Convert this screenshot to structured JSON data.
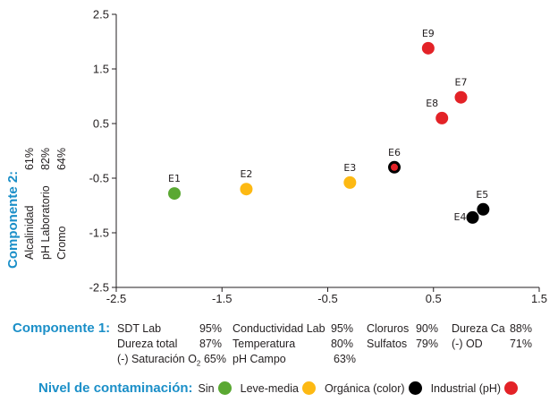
{
  "chart_data": {
    "type": "scatter",
    "title": "",
    "xlabel": "Componente 1",
    "ylabel": "Componente 2",
    "xlim": [
      -2.5,
      1.5
    ],
    "ylim": [
      -2.5,
      2.5
    ],
    "xticks": [
      -2.5,
      -1.5,
      -0.5,
      0.5,
      1.5
    ],
    "yticks": [
      2.5,
      1.5,
      0.5,
      -0.5,
      -1.5,
      -2.5
    ],
    "xtick_labels": [
      "-2.5",
      "-1.5",
      "-0.5",
      "0.5",
      "1.5"
    ],
    "ytick_labels": [
      "2.5",
      "1.5",
      "0.5",
      "-0.5",
      "-1.5",
      "-2.5"
    ],
    "grid": false,
    "points": [
      {
        "label": "E1",
        "x": -1.95,
        "y": -0.78,
        "category": "Sin"
      },
      {
        "label": "E2",
        "x": -1.27,
        "y": -0.7,
        "category": "Leve-media"
      },
      {
        "label": "E3",
        "x": -0.29,
        "y": -0.58,
        "category": "Leve-media"
      },
      {
        "label": "E4",
        "x": 0.87,
        "y": -1.22,
        "category": "Orgánica (color)"
      },
      {
        "label": "E5",
        "x": 0.97,
        "y": -1.07,
        "category": "Orgánica (color)"
      },
      {
        "label": "E6",
        "x": 0.13,
        "y": -0.3,
        "category": "Industrial (pH)",
        "outline": "Orgánica (color)"
      },
      {
        "label": "E7",
        "x": 0.76,
        "y": 0.98,
        "category": "Industrial (pH)"
      },
      {
        "label": "E8",
        "x": 0.58,
        "y": 0.6,
        "category": "Industrial (pH)"
      },
      {
        "label": "E9",
        "x": 0.45,
        "y": 1.88,
        "category": "Industrial (pH)"
      }
    ],
    "legend": {
      "title": "Nivel de contaminación:",
      "placement": "bottom",
      "entries": [
        {
          "name": "Sin",
          "color": "#5aa832"
        },
        {
          "name": "Leve-media",
          "color": "#fdb913"
        },
        {
          "name": "Orgánica (color)",
          "color": "#000000"
        },
        {
          "name": "Industrial (pH)",
          "color": "#e32227"
        }
      ]
    }
  },
  "component2": {
    "title": "Componente 2:",
    "items": [
      {
        "name": "Alcalinidad",
        "value": "61%"
      },
      {
        "name": "pH Laboratorio",
        "value": "82%"
      },
      {
        "name": "Cromo",
        "value": "64%"
      }
    ]
  },
  "component1": {
    "title": "Componente 1:",
    "rows": [
      [
        {
          "name": "SDT Lab",
          "value": "95%"
        },
        {
          "name": "Conductividad Lab",
          "value": "95%"
        },
        {
          "name": "Cloruros",
          "value": "90%"
        },
        {
          "name": "Dureza Ca",
          "value": "88%"
        }
      ],
      [
        {
          "name": "Dureza total",
          "value": "87%"
        },
        {
          "name": "Temperatura",
          "value": "80%"
        },
        {
          "name": "Sulfatos",
          "value": "79%"
        },
        {
          "name": "(-) OD",
          "value": "71%"
        }
      ],
      [
        {
          "name": "(-) Saturación O",
          "sub": "2",
          "value": "65%"
        },
        {
          "name": "pH Campo",
          "value": "63%"
        }
      ]
    ]
  },
  "colors": {
    "accent": "#1b8fc8",
    "axis": "#231f20"
  }
}
